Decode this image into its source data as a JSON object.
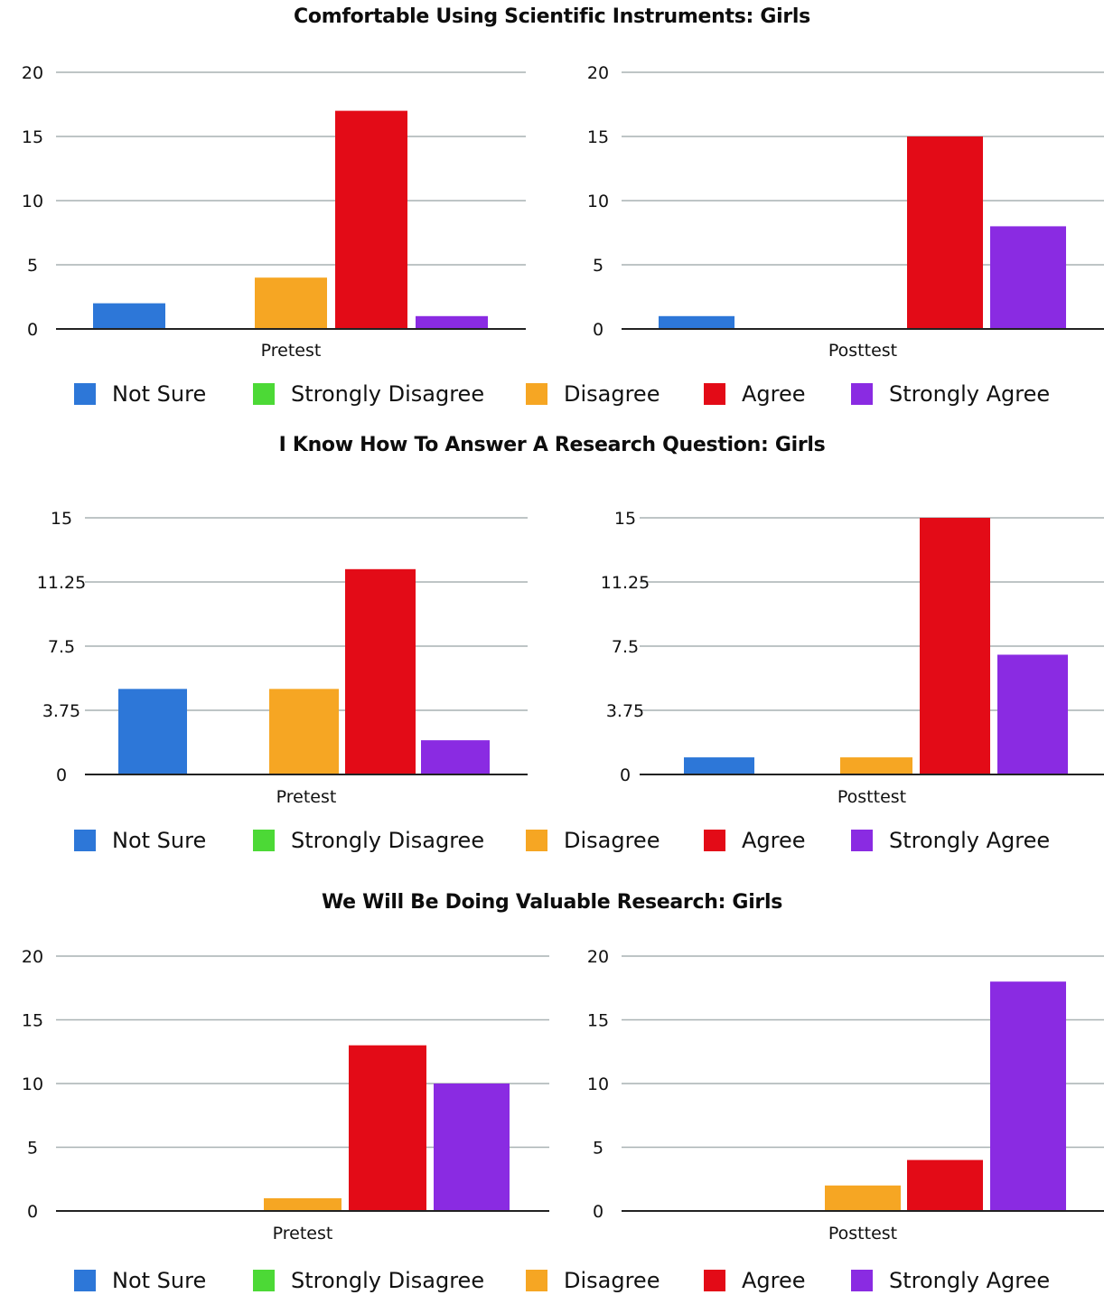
{
  "colors": {
    "Not Sure": "#2d77d8",
    "Strongly Disagree": "#4cd936",
    "Disagree": "#f6a623",
    "Agree": "#e30b17",
    "Strongly Agree": "#8a2be2",
    "grid": "#a9b2b4",
    "axis": "#222222"
  },
  "legend": [
    "Not Sure",
    "Strongly Disagree",
    "Disagree",
    "Agree",
    "Strongly Agree"
  ],
  "sections": [
    {
      "title": "Comfortable Using Scientific Instruments: Girls"
    },
    {
      "title": "I Know How To Answer A Research Question: Girls"
    },
    {
      "title": "We Will Be Doing Valuable Research: Girls"
    }
  ],
  "chart_data": [
    {
      "type": "bar",
      "section": 0,
      "xlabel": "Pretest",
      "yticks": [
        "0",
        "5",
        "10",
        "15",
        "20"
      ],
      "ylim": [
        0,
        20
      ],
      "categories": [
        "Not Sure",
        "Strongly Disagree",
        "Disagree",
        "Agree",
        "Strongly Agree"
      ],
      "values": [
        2,
        0,
        4,
        17,
        1
      ],
      "grid": true
    },
    {
      "type": "bar",
      "section": 0,
      "xlabel": "Posttest",
      "yticks": [
        "0",
        "5",
        "10",
        "15",
        "20"
      ],
      "ylim": [
        0,
        20
      ],
      "categories": [
        "Not Sure",
        "Strongly Disagree",
        "Disagree",
        "Agree",
        "Strongly Agree"
      ],
      "values": [
        1,
        0,
        0,
        15,
        8
      ],
      "grid": true
    },
    {
      "type": "bar",
      "section": 1,
      "xlabel": "Pretest",
      "yticks": [
        "0",
        "3.75",
        "7.5",
        "11.25",
        "15"
      ],
      "ylim": [
        0,
        15
      ],
      "categories": [
        "Not Sure",
        "Strongly Disagree",
        "Disagree",
        "Agree",
        "Strongly Agree"
      ],
      "values": [
        5,
        0,
        5,
        12,
        2
      ],
      "grid": true
    },
    {
      "type": "bar",
      "section": 1,
      "xlabel": "Posttest",
      "yticks": [
        "0",
        "3.75",
        "7.5",
        "11.25",
        "15"
      ],
      "ylim": [
        0,
        15
      ],
      "categories": [
        "Not Sure",
        "Strongly Disagree",
        "Disagree",
        "Agree",
        "Strongly Agree"
      ],
      "values": [
        1,
        0,
        1,
        15,
        7
      ],
      "grid": true
    },
    {
      "type": "bar",
      "section": 2,
      "xlabel": "Pretest",
      "yticks": [
        "0",
        "5",
        "10",
        "15",
        "20"
      ],
      "ylim": [
        0,
        20
      ],
      "categories": [
        "Not Sure",
        "Strongly Disagree",
        "Disagree",
        "Agree",
        "Strongly Agree"
      ],
      "values": [
        0,
        0,
        1,
        13,
        10
      ],
      "grid": true
    },
    {
      "type": "bar",
      "section": 2,
      "xlabel": "Posttest",
      "yticks": [
        "0",
        "5",
        "10",
        "15",
        "20"
      ],
      "ylim": [
        0,
        20
      ],
      "categories": [
        "Not Sure",
        "Strongly Disagree",
        "Disagree",
        "Agree",
        "Strongly Agree"
      ],
      "values": [
        0,
        0,
        2,
        4,
        18
      ],
      "grid": true
    }
  ]
}
